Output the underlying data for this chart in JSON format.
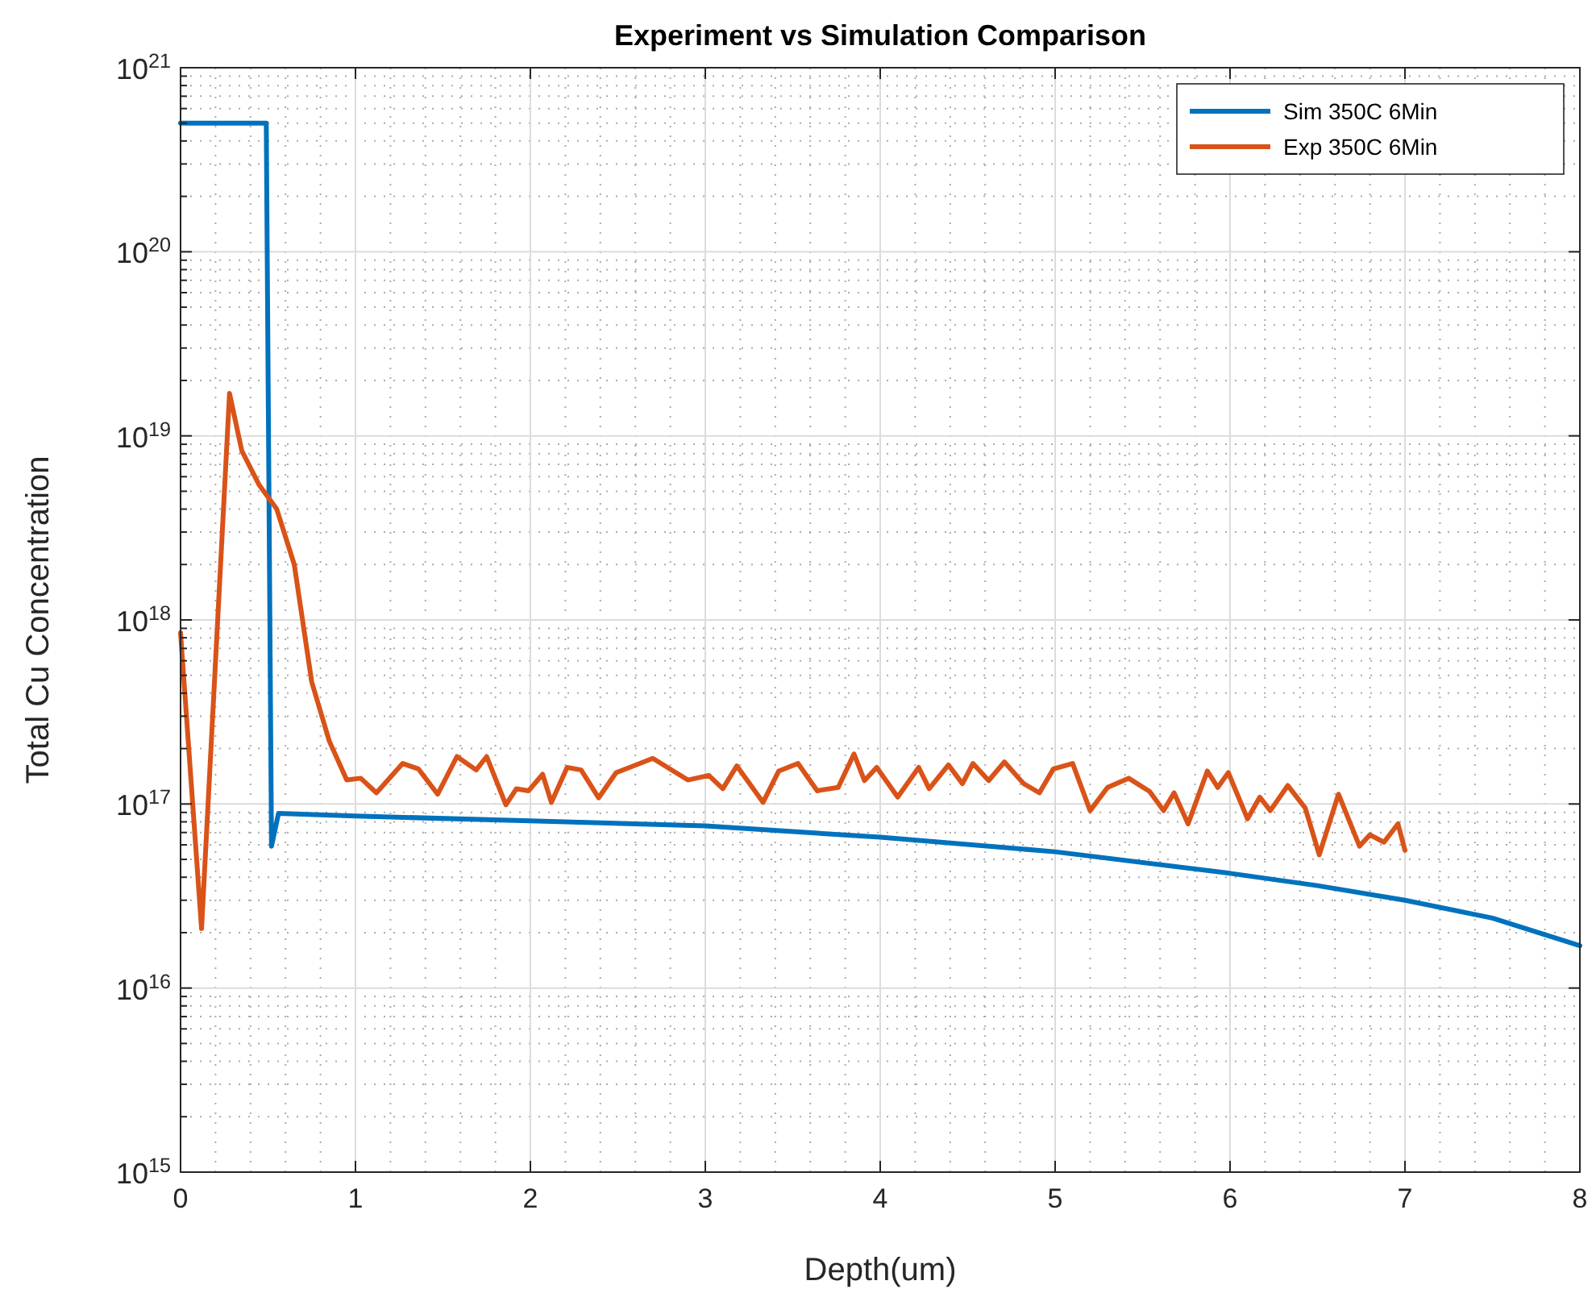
{
  "chart_data": {
    "type": "line",
    "title": "Experiment vs Simulation Comparison",
    "xlabel": "Depth(um)",
    "ylabel": "Total Cu Concentration",
    "log": "y",
    "grid": true,
    "legend": "top right",
    "line_style": "solid",
    "xlim": [
      0,
      8
    ],
    "xticks": [
      0,
      1,
      2,
      3,
      4,
      5,
      6,
      7,
      8
    ],
    "ylim": [
      1000000000000000.0,
      1e+21
    ],
    "yticks": [
      {
        "value": 1000000000000000.0,
        "label": "10$^{15}$"
      },
      {
        "value": 1e+16,
        "label": "10$^{16}$"
      },
      {
        "value": 1e+17,
        "label": "10$^{17}$"
      },
      {
        "value": 1e+18,
        "label": "10$^{18}$"
      },
      {
        "value": 1e+19,
        "label": "10$^{19}$"
      },
      {
        "value": 1e+20,
        "label": "10$^{20}$"
      },
      {
        "value": 1e+21,
        "label": "10$^{21}$"
      }
    ],
    "series": [
      {
        "name": "Sim 350C 6Min",
        "color": "#0072bd",
        "x": [
          0,
          0.49,
          0.52,
          0.56,
          1,
          2,
          3,
          4,
          5,
          6,
          6.5,
          7,
          7.5,
          8
        ],
        "values": [
          5e+20,
          5e+20,
          5.9e+16,
          8.9e+16,
          8.6e+16,
          8.1e+16,
          7.6e+16,
          6.6e+16,
          5.5e+16,
          4.2e+16,
          3.6e+16,
          3e+16,
          2.4e+16,
          1.7e+16
        ]
      },
      {
        "name": "Exp 350C 6Min",
        "color": "#d95319",
        "x": [
          0,
          0.12,
          0.28,
          0.35,
          0.45,
          0.55,
          0.65,
          0.75,
          0.85,
          0.95,
          1.03,
          1.12,
          1.27,
          1.36,
          1.47,
          1.58,
          1.69,
          1.75,
          1.86,
          1.92,
          1.99,
          2.07,
          2.12,
          2.21,
          2.29,
          2.39,
          2.49,
          2.7,
          2.9,
          3.02,
          3.1,
          3.18,
          3.33,
          3.42,
          3.53,
          3.64,
          3.76,
          3.85,
          3.91,
          3.98,
          4.1,
          4.22,
          4.28,
          4.39,
          4.47,
          4.53,
          4.62,
          4.71,
          4.82,
          4.91,
          4.99,
          5.1,
          5.2,
          5.3,
          5.42,
          5.54,
          5.62,
          5.68,
          5.76,
          5.87,
          5.93,
          5.99,
          6.1,
          6.17,
          6.23,
          6.33,
          6.43,
          6.51,
          6.62,
          6.74,
          6.8,
          6.88,
          6.96,
          7.0
        ],
        "values": [
          8.5e+17,
          2.1e+16,
          1.7e+19,
          8.3e+18,
          5.4e+18,
          4e+18,
          2e+18,
          4.6e+17,
          2.2e+17,
          1.35e+17,
          1.38e+17,
          1.15e+17,
          1.66e+17,
          1.55e+17,
          1.13e+17,
          1.81e+17,
          1.53e+17,
          1.81e+17,
          9.9e+16,
          1.21e+17,
          1.18e+17,
          1.45e+17,
          1.02e+17,
          1.58e+17,
          1.53e+17,
          1.08e+17,
          1.48e+17,
          1.77e+17,
          1.35e+17,
          1.43e+17,
          1.21e+17,
          1.61e+17,
          1.02e+17,
          1.51e+17,
          1.66e+17,
          1.18e+17,
          1.23e+17,
          1.87e+17,
          1.34e+17,
          1.58e+17,
          1.09e+17,
          1.58e+17,
          1.21e+17,
          1.63e+17,
          1.29e+17,
          1.66e+17,
          1.34e+17,
          1.69e+17,
          1.29e+17,
          1.15e+17,
          1.55e+17,
          1.66e+17,
          9.2e+16,
          1.23e+17,
          1.38e+17,
          1.17e+17,
          9.2e+16,
          1.15e+17,
          7.8e+16,
          1.51e+17,
          1.23e+17,
          1.48e+17,
          8.3e+16,
          1.09e+17,
          9.2e+16,
          1.26e+17,
          9.5e+16,
          5.3e+16,
          1.13e+17,
          5.9e+16,
          6.8e+16,
          6.2e+16,
          7.8e+16,
          5.6e+16
        ]
      }
    ]
  }
}
